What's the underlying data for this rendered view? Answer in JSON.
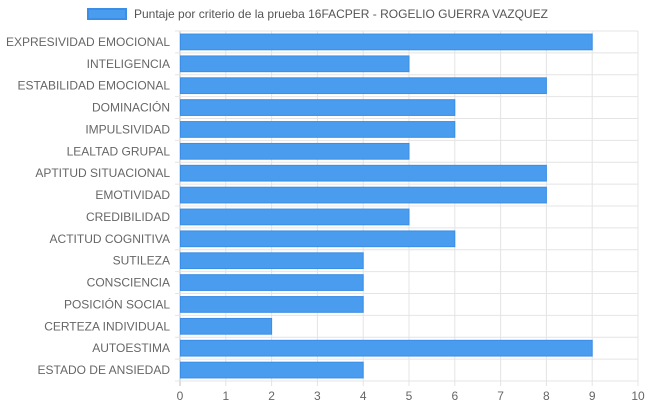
{
  "chart_data": {
    "type": "bar",
    "orientation": "horizontal",
    "legend": {
      "label": "Puntaje por criterio de la prueba 16FACPER - ROGELIO GUERRA VAZQUEZ",
      "position": "top"
    },
    "categories": [
      "EXPRESIVIDAD EMOCIONAL",
      "INTELIGENCIA",
      "ESTABILIDAD EMOCIONAL",
      "DOMINACIÓN",
      "IMPULSIVIDAD",
      "LEALTAD GRUPAL",
      "APTITUD SITUACIONAL",
      "EMOTIVIDAD",
      "CREDIBILIDAD",
      "ACTITUD COGNITIVA",
      "SUTILEZA",
      "CONSCIENCIA",
      "POSICIÓN SOCIAL",
      "CERTEZA INDIVIDUAL",
      "AUTOESTIMA",
      "ESTADO DE ANSIEDAD"
    ],
    "series": [
      {
        "name": "Puntaje por criterio de la prueba 16FACPER - ROGELIO GUERRA VAZQUEZ",
        "values": [
          9,
          5,
          8,
          6,
          6,
          5,
          8,
          8,
          5,
          6,
          4,
          4,
          4,
          2,
          9,
          4
        ]
      }
    ],
    "xlim": [
      0,
      10
    ],
    "xticks": [
      "0",
      "1",
      "2",
      "3",
      "4",
      "5",
      "6",
      "7",
      "8",
      "9",
      "10"
    ],
    "grid": true,
    "colors": {
      "bar": "#4a9cee",
      "bar_border": "#3a8ee6",
      "grid": "#e4e4e4",
      "axis_text": "#666666"
    }
  }
}
